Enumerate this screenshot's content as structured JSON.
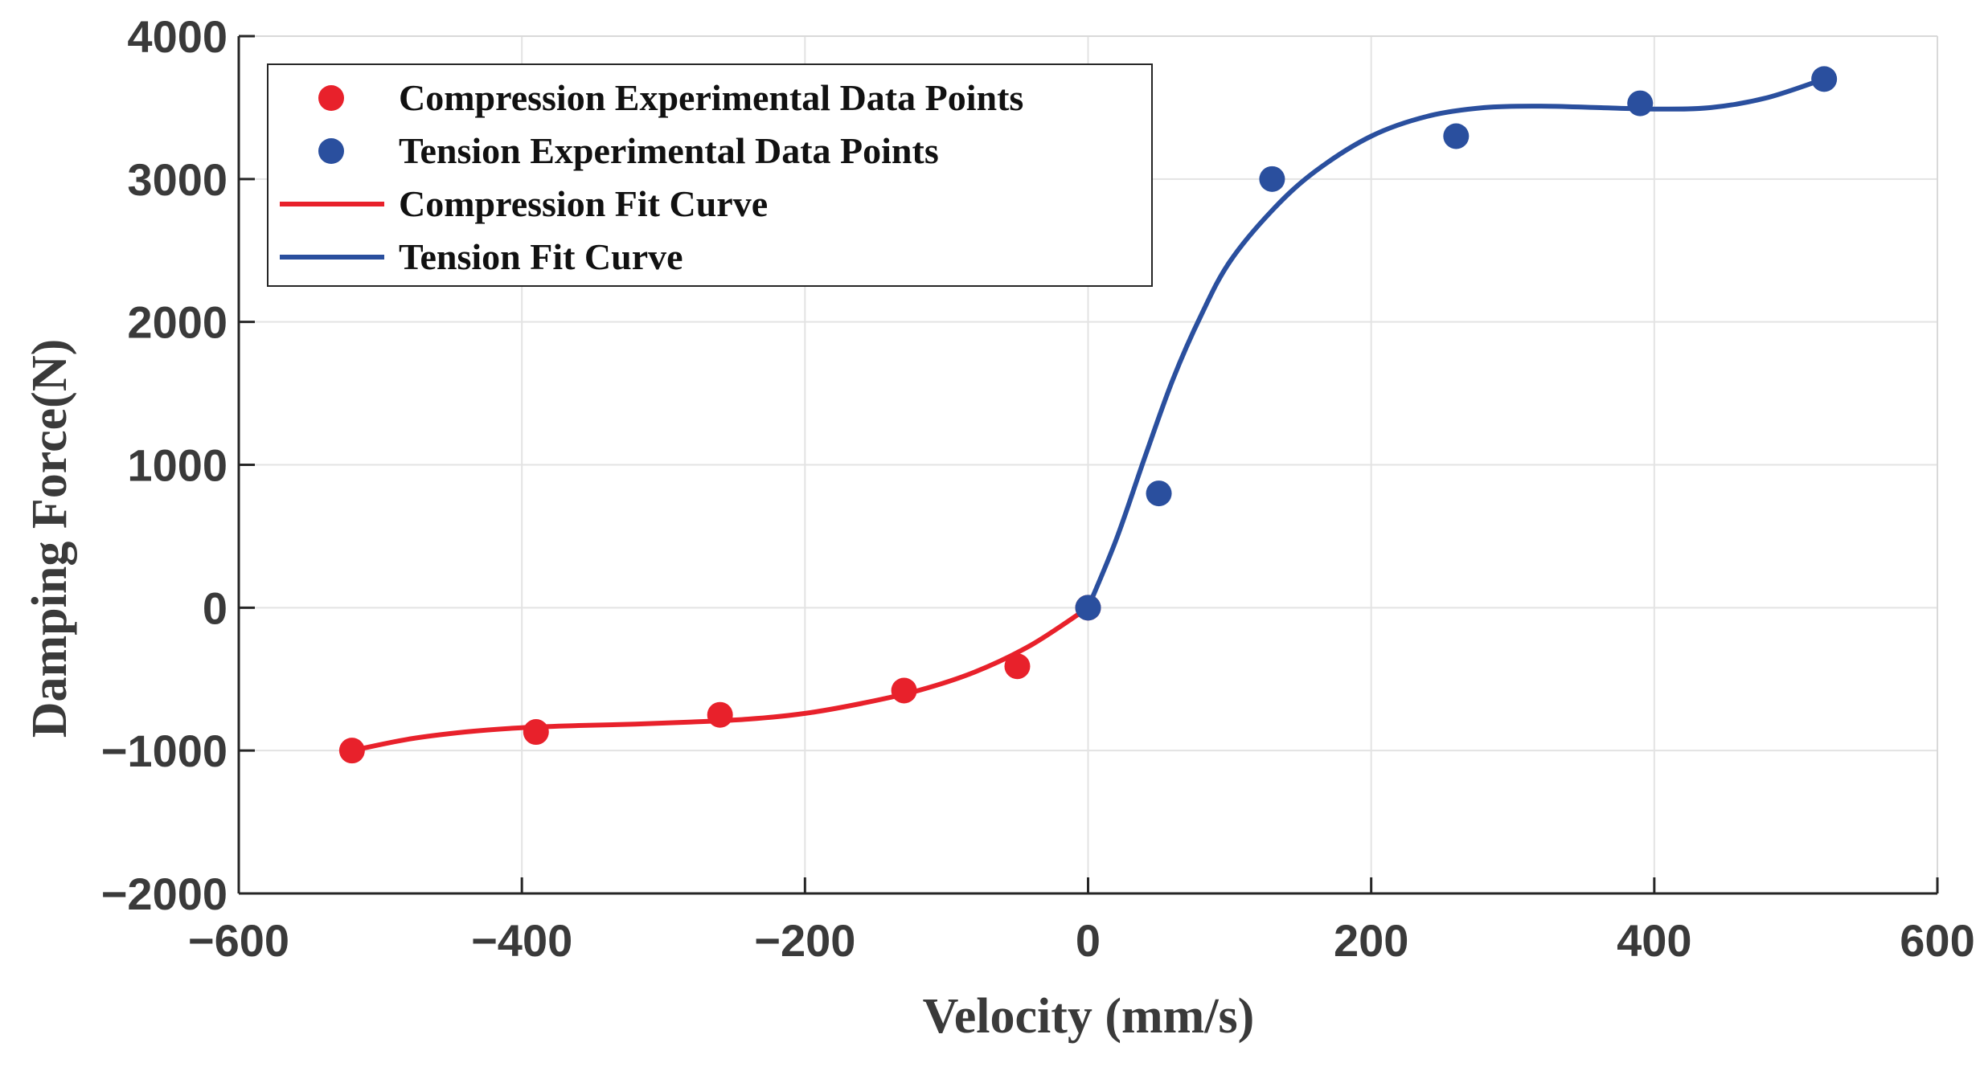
{
  "chart_data": {
    "type": "scatter",
    "title": "",
    "xlabel": "Velocity (mm/s)",
    "ylabel": "Damping Force(N)",
    "xlim": [
      -600,
      600
    ],
    "ylim": [
      -2000,
      4000
    ],
    "xticks": [
      -600,
      -400,
      -200,
      0,
      200,
      400,
      600
    ],
    "yticks": [
      -2000,
      -1000,
      0,
      1000,
      2000,
      3000,
      4000
    ],
    "xtick_labels": [
      "−600",
      "−400",
      "−200",
      "0",
      "200",
      "400",
      "600"
    ],
    "ytick_labels": [
      "−2000",
      "−1000",
      "0",
      "1000",
      "2000",
      "3000",
      "4000"
    ],
    "grid": true,
    "legend_position": "top-left",
    "series": [
      {
        "name": "Compression Experimental Data Points",
        "kind": "markers",
        "color": "#e8212b",
        "x": [
          -520,
          -390,
          -260,
          -130,
          -50,
          0
        ],
        "y": [
          -1000,
          -870,
          -750,
          -580,
          -410,
          0
        ]
      },
      {
        "name": "Tension Experimental Data Points",
        "kind": "markers",
        "color": "#2a4f9e",
        "x": [
          0,
          50,
          130,
          260,
          390,
          520
        ],
        "y": [
          0,
          800,
          3000,
          3300,
          3530,
          3700
        ]
      },
      {
        "name": "Compression Fit Curve",
        "kind": "line",
        "color": "#e8212b",
        "x": [
          -520,
          -480,
          -440,
          -400,
          -360,
          -320,
          -280,
          -240,
          -200,
          -160,
          -120,
          -80,
          -40,
          0
        ],
        "y": [
          -1000,
          -920,
          -870,
          -840,
          -825,
          -815,
          -800,
          -780,
          -740,
          -670,
          -580,
          -450,
          -260,
          0
        ]
      },
      {
        "name": "Tension Fit Curve",
        "kind": "line",
        "color": "#2a4f9e",
        "x": [
          0,
          20,
          40,
          60,
          80,
          100,
          130,
          160,
          200,
          240,
          280,
          320,
          360,
          400,
          440,
          480,
          520
        ],
        "y": [
          0,
          480,
          1050,
          1600,
          2050,
          2420,
          2780,
          3050,
          3300,
          3440,
          3500,
          3510,
          3500,
          3490,
          3500,
          3570,
          3700
        ]
      }
    ]
  }
}
